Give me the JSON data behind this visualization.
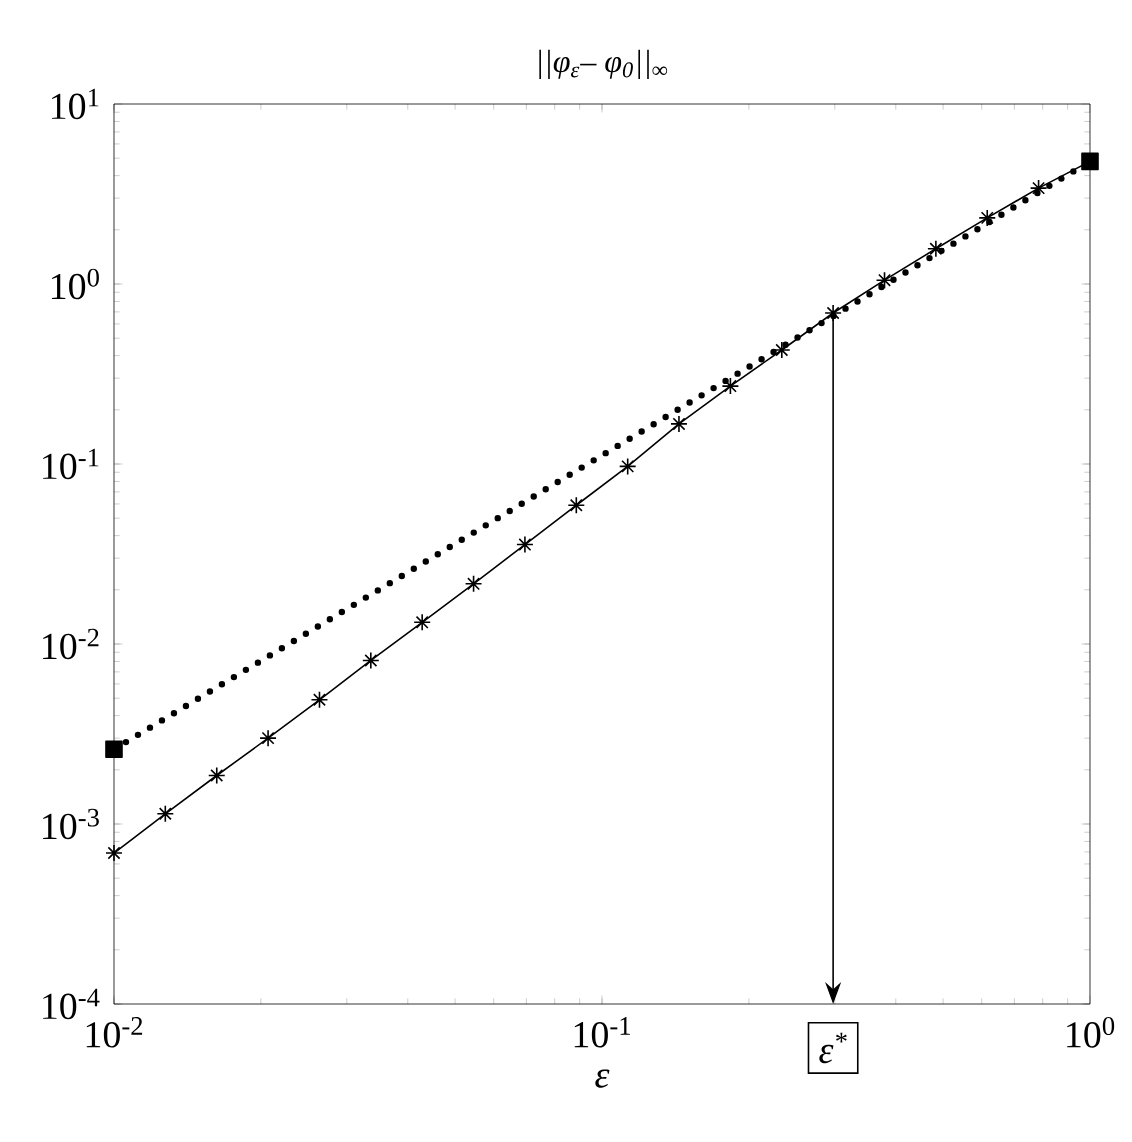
{
  "chart_data": {
    "type": "line",
    "title": "||φ$_{ε}$– φ$_{0}$||$_{∞}$",
    "xlabel": "ε",
    "log": "xy",
    "xlim": [
      0.01,
      1
    ],
    "ylim": [
      0.0001,
      10
    ],
    "xticks": [
      {
        "value": 0.01,
        "label": "10$^{-2}$"
      },
      {
        "value": 0.1,
        "label": "10$^{-1}$"
      },
      {
        "value": 1,
        "label": "10$^{0}$"
      }
    ],
    "yticks": [
      {
        "value": 0.0001,
        "label": "10$^{-4}$"
      },
      {
        "value": 0.001,
        "label": "10$^{-3}$"
      },
      {
        "value": 0.01,
        "label": "10$^{-2}$"
      },
      {
        "value": 0.1,
        "label": "10$^{-1}$"
      },
      {
        "value": 1,
        "label": "10$^{0}$"
      },
      {
        "value": 10,
        "label": "10$^{1}$"
      }
    ],
    "series": [
      {
        "color": "#000000",
        "marker": "cross",
        "line_style": "solid",
        "x": [
          0.01,
          0.01274,
          0.01624,
          0.02069,
          0.02637,
          0.0336,
          0.04281,
          0.05456,
          0.06952,
          0.08859,
          0.1129,
          0.1438,
          0.1833,
          0.2336,
          0.2976,
          0.3793,
          0.4833,
          0.6158,
          0.7848,
          1
        ],
        "values": [
          0.00069,
          0.00114,
          0.00186,
          0.003,
          0.0049,
          0.0081,
          0.0132,
          0.0216,
          0.0357,
          0.059,
          0.097,
          0.167,
          0.271,
          0.43,
          0.69,
          1.05,
          1.57,
          2.33,
          3.41,
          4.8
        ]
      },
      {
        "color": "#000000",
        "marker": "square",
        "line_style": "dotted",
        "x": [
          0.01,
          1
        ],
        "values": [
          0.0026,
          4.8
        ]
      }
    ],
    "annotations": [
      {
        "text": "ε$^{*}$",
        "x": 0.2976,
        "y": 0.69
      }
    ]
  }
}
